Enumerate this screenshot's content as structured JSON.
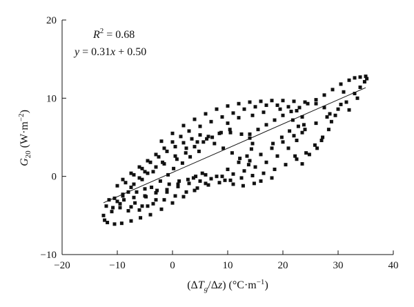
{
  "chart_data": {
    "type": "scatter",
    "xlabel_parts": [
      "(Δ",
      "T",
      "g",
      "/Δ",
      "z",
      ") (°C·m",
      "−1",
      ")"
    ],
    "ylabel_parts": [
      "G",
      "20",
      " (W·m",
      "−2",
      ")"
    ],
    "xlim": [
      -20,
      40
    ],
    "ylim": [
      -10,
      20
    ],
    "xticks": [
      -20,
      -10,
      0,
      10,
      20,
      30,
      40
    ],
    "yticks": [
      -10,
      0,
      10,
      20
    ],
    "grid": false,
    "marker": "square",
    "color": "#111111",
    "annotations": {
      "r2_parts": [
        "R",
        "2",
        " = 0.68"
      ],
      "equation_parts": [
        "y",
        " = 0.31",
        "x",
        " + 0.50"
      ]
    },
    "trendline": {
      "slope": 0.31,
      "intercept": 0.5,
      "x_range": [
        -12.5,
        35
      ]
    },
    "points": [
      [
        -12.5,
        -5.0
      ],
      [
        -12.3,
        -5.6
      ],
      [
        -11.8,
        -5.9
      ],
      [
        -10.5,
        -6.1
      ],
      [
        -9.2,
        -6.0
      ],
      [
        -7.5,
        -5.7
      ],
      [
        -5.8,
        -5.3
      ],
      [
        -4.0,
        -4.9
      ],
      [
        -2.0,
        -4.2
      ],
      [
        0.0,
        -3.4
      ],
      [
        2.0,
        -2.6
      ],
      [
        4.0,
        -1.8
      ],
      [
        6.0,
        -0.9
      ],
      [
        8.0,
        0.0
      ],
      [
        10.0,
        0.9
      ],
      [
        12.0,
        1.8
      ],
      [
        13.5,
        2.6
      ],
      [
        14.3,
        3.5
      ],
      [
        14.5,
        4.2
      ],
      [
        14.0,
        4.9
      ],
      [
        12.5,
        5.4
      ],
      [
        10.5,
        5.6
      ],
      [
        8.5,
        5.5
      ],
      [
        6.5,
        5.1
      ],
      [
        4.5,
        4.4
      ],
      [
        2.5,
        3.6
      ],
      [
        0.5,
        2.6
      ],
      [
        -1.5,
        1.6
      ],
      [
        -3.5,
        0.6
      ],
      [
        -5.5,
        -0.4
      ],
      [
        -7.5,
        -1.4
      ],
      [
        -9.0,
        -2.3
      ],
      [
        -10.0,
        -3.2
      ],
      [
        -9.5,
        -4.0
      ],
      [
        -8.0,
        -4.4
      ],
      [
        -6.0,
        -4.3
      ],
      [
        -4.5,
        -3.8
      ],
      [
        -3.0,
        -3.0
      ],
      [
        -1.0,
        -2.0
      ],
      [
        1.0,
        -1.0
      ],
      [
        -10.0,
        -1.2
      ],
      [
        -9.0,
        -0.4
      ],
      [
        -7.5,
        0.4
      ],
      [
        -6.0,
        1.2
      ],
      [
        -4.5,
        2.0
      ],
      [
        -3.0,
        2.8
      ],
      [
        -1.5,
        3.6
      ],
      [
        0.0,
        4.4
      ],
      [
        1.5,
        5.1
      ],
      [
        3.0,
        5.8
      ],
      [
        5.0,
        6.4
      ],
      [
        7.0,
        7.0
      ],
      [
        9.0,
        7.6
      ],
      [
        11.0,
        8.1
      ],
      [
        13.0,
        8.6
      ],
      [
        15.0,
        8.9
      ],
      [
        17.0,
        9.1
      ],
      [
        19.0,
        9.1
      ],
      [
        21.0,
        8.9
      ],
      [
        22.5,
        8.4
      ],
      [
        23.5,
        7.6
      ],
      [
        23.8,
        6.6
      ],
      [
        23.5,
        5.6
      ],
      [
        22.5,
        4.6
      ],
      [
        21.0,
        3.6
      ],
      [
        19.0,
        2.6
      ],
      [
        17.0,
        1.8
      ],
      [
        15.0,
        1.2
      ],
      [
        13.0,
        0.7
      ],
      [
        11.0,
        0.3
      ],
      [
        9.0,
        0.0
      ],
      [
        7.0,
        -0.3
      ],
      [
        5.0,
        -0.6
      ],
      [
        3.0,
        -0.9
      ],
      [
        1.0,
        -1.3
      ],
      [
        -1.0,
        -1.7
      ],
      [
        -3.0,
        -2.1
      ],
      [
        -5.0,
        -2.5
      ],
      [
        -7.0,
        -2.7
      ],
      [
        -9.0,
        -2.5
      ],
      [
        -8.5,
        -0.8
      ],
      [
        -7.0,
        0.2
      ],
      [
        -5.5,
        1.0
      ],
      [
        -4.0,
        1.8
      ],
      [
        -2.5,
        2.5
      ],
      [
        -1.0,
        3.2
      ],
      [
        0.5,
        3.8
      ],
      [
        2.0,
        4.3
      ],
      [
        3.5,
        4.8
      ],
      [
        5.0,
        5.3
      ],
      [
        -2.0,
        4.5
      ],
      [
        0.0,
        5.5
      ],
      [
        2.0,
        6.5
      ],
      [
        4.0,
        7.3
      ],
      [
        6.0,
        8.0
      ],
      [
        8.0,
        8.6
      ],
      [
        10.0,
        9.0
      ],
      [
        12.0,
        9.3
      ],
      [
        14.0,
        9.5
      ],
      [
        16.0,
        9.6
      ],
      [
        18.0,
        9.7
      ],
      [
        20.0,
        9.7
      ],
      [
        22.0,
        9.6
      ],
      [
        24.0,
        9.5
      ],
      [
        26.0,
        9.3
      ],
      [
        27.5,
        8.8
      ],
      [
        28.5,
        8.0
      ],
      [
        28.8,
        7.0
      ],
      [
        28.3,
        6.0
      ],
      [
        27.2,
        5.0
      ],
      [
        25.8,
        4.0
      ],
      [
        24.2,
        3.0
      ],
      [
        22.5,
        2.2
      ],
      [
        20.5,
        1.5
      ],
      [
        18.5,
        0.9
      ],
      [
        16.5,
        0.4
      ],
      [
        14.5,
        0.1
      ],
      [
        12.5,
        -0.2
      ],
      [
        10.5,
        -0.5
      ],
      [
        8.5,
        -0.8
      ],
      [
        6.5,
        -1.1
      ],
      [
        4.5,
        -1.5
      ],
      [
        2.5,
        -2.0
      ],
      [
        0.5,
        -2.5
      ],
      [
        -1.5,
        -3.0
      ],
      [
        -3.5,
        -3.5
      ],
      [
        -5.5,
        -3.8
      ],
      [
        -7.5,
        -3.9
      ],
      [
        -9.5,
        -3.5
      ],
      [
        -10.5,
        -2.8
      ],
      [
        14.0,
        2.0
      ],
      [
        16.0,
        2.8
      ],
      [
        18.0,
        3.6
      ],
      [
        20.0,
        4.4
      ],
      [
        22.0,
        5.2
      ],
      [
        24.0,
        6.0
      ],
      [
        26.0,
        6.8
      ],
      [
        28.0,
        7.6
      ],
      [
        30.0,
        8.6
      ],
      [
        31.5,
        9.5
      ],
      [
        33.0,
        10.6
      ],
      [
        34.0,
        11.4
      ],
      [
        34.8,
        12.1
      ],
      [
        35.2,
        12.5
      ],
      [
        35.0,
        12.8
      ],
      [
        34.0,
        12.7
      ],
      [
        33.0,
        12.6
      ],
      [
        32.0,
        12.3
      ],
      [
        30.5,
        11.8
      ],
      [
        29.0,
        11.1
      ],
      [
        27.5,
        10.4
      ],
      [
        26.0,
        9.8
      ],
      [
        24.5,
        9.3
      ],
      [
        23.0,
        8.8
      ],
      [
        21.5,
        8.3
      ],
      [
        20.0,
        7.8
      ],
      [
        18.5,
        7.2
      ],
      [
        17.0,
        6.6
      ],
      [
        15.5,
        6.0
      ],
      [
        14.0,
        5.4
      ],
      [
        33.5,
        10.0
      ],
      [
        32.0,
        8.5
      ],
      [
        30.5,
        9.2
      ],
      [
        29.5,
        7.8
      ],
      [
        31.0,
        10.8
      ],
      [
        24.8,
        2.8
      ],
      [
        23.5,
        1.6
      ],
      [
        22.2,
        2.6
      ],
      [
        26.2,
        3.6
      ],
      [
        27.0,
        4.6
      ],
      [
        18.0,
        -0.2
      ],
      [
        16.0,
        -0.6
      ],
      [
        14.8,
        -0.9
      ],
      [
        12.8,
        -1.2
      ],
      [
        11.0,
        -1.0
      ],
      [
        9.5,
        -0.5
      ],
      [
        6.0,
        0.2
      ],
      [
        4.2,
        0.0
      ],
      [
        2.8,
        -0.4
      ],
      [
        1.2,
        -0.6
      ],
      [
        13.8,
        1.5
      ],
      [
        12.2,
        2.3
      ],
      [
        10.8,
        3.0
      ],
      [
        9.2,
        3.6
      ],
      [
        7.6,
        4.2
      ],
      [
        6.2,
        4.8
      ],
      [
        4.8,
        3.2
      ],
      [
        3.2,
        2.5
      ],
      [
        1.8,
        1.7
      ],
      [
        0.2,
        1.0
      ],
      [
        -0.8,
        0.2
      ],
      [
        -2.2,
        -0.6
      ],
      [
        -3.8,
        -1.4
      ],
      [
        -5.0,
        -1.6
      ],
      [
        -6.5,
        -2.0
      ],
      [
        -8.0,
        -2.0
      ],
      [
        -11.0,
        -4.5
      ],
      [
        -12.0,
        -3.8
      ],
      [
        -11.5,
        -3.0
      ],
      [
        -10.8,
        -4.0
      ],
      [
        10.0,
        6.8
      ],
      [
        12.0,
        7.5
      ],
      [
        14.5,
        7.8
      ],
      [
        16.5,
        8.2
      ],
      [
        19.5,
        8.6
      ],
      [
        21.8,
        7.2
      ],
      [
        22.8,
        6.4
      ],
      [
        21.2,
        5.8
      ],
      [
        19.8,
        5.0
      ],
      [
        18.2,
        4.2
      ],
      [
        -4.5,
        0.4
      ],
      [
        -3.0,
        1.2
      ],
      [
        -1.8,
        1.8
      ],
      [
        0.8,
        2.2
      ],
      [
        2.4,
        3.0
      ],
      [
        4.0,
        3.8
      ],
      [
        5.6,
        4.4
      ],
      [
        7.2,
        5.0
      ],
      [
        8.8,
        5.6
      ],
      [
        10.4,
        6.0
      ],
      [
        -7.0,
        -1.0
      ],
      [
        -6.0,
        -0.2
      ],
      [
        -5.0,
        0.6
      ],
      [
        -8.8,
        -3.0
      ],
      [
        -6.8,
        -3.4
      ],
      [
        -4.8,
        -2.6
      ],
      [
        -2.8,
        -1.8
      ],
      [
        -0.6,
        -1.0
      ],
      [
        3.8,
        -0.2
      ],
      [
        5.4,
        0.4
      ]
    ]
  }
}
